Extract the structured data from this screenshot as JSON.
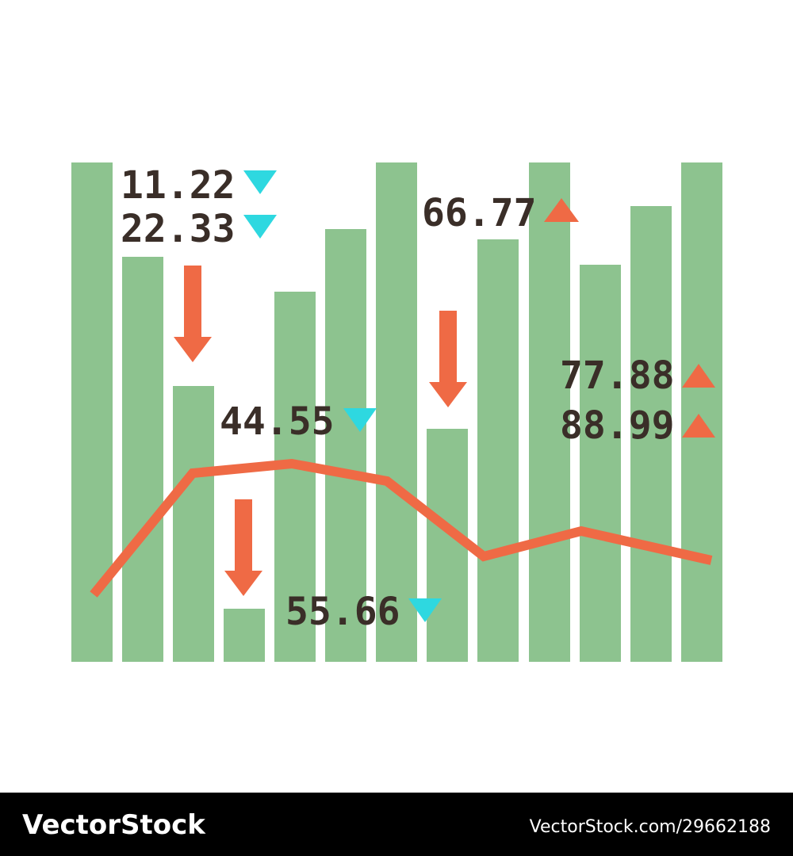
{
  "labels": [
    {
      "text": "11.22"
    },
    {
      "text": "22.33"
    },
    {
      "text": "44.55"
    },
    {
      "text": "55.66"
    },
    {
      "text": "66.77"
    },
    {
      "text": "77.88"
    },
    {
      "text": "88.99"
    }
  ],
  "watermark": {
    "brand": "VectorStock",
    "id": "VectorStock.com/29662188"
  }
}
